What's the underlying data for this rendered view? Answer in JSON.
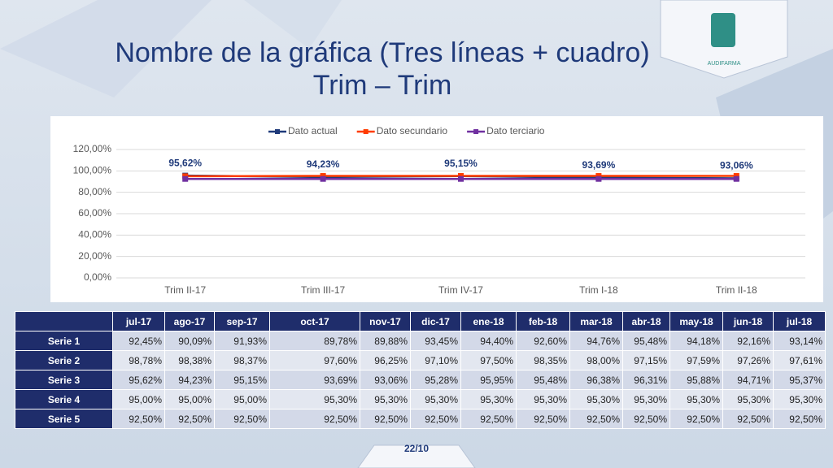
{
  "slide": {
    "title": "Nombre de la gráfica (Tres líneas + cuadro)",
    "subtitle": "Trim – Trim",
    "logo_text": "AUDIFARMA",
    "page_number": "22/10"
  },
  "chart_data": {
    "type": "line",
    "categories": [
      "Trim II-17",
      "Trim III-17",
      "Trim IV-17",
      "Trim I-18",
      "Trim II-18"
    ],
    "series": [
      {
        "name": "Dato actual",
        "color": "#1f3a7a",
        "values": [
          95.62,
          94.23,
          95.15,
          93.69,
          93.06
        ],
        "value_labels": [
          "95,62%",
          "94,23%",
          "95,15%",
          "93,69%",
          "93,06%"
        ]
      },
      {
        "name": "Dato secundario",
        "color": "#ff3c00",
        "values": [
          95.0,
          95.3,
          95.3,
          95.3,
          95.3
        ]
      },
      {
        "name": "Dato terciario",
        "color": "#7030a0",
        "values": [
          92.5,
          92.5,
          92.5,
          92.5,
          92.5
        ]
      }
    ],
    "ylim": [
      0,
      120
    ],
    "yticks": [
      {
        "value": 0,
        "label": "0,00%"
      },
      {
        "value": 20,
        "label": "20,00%"
      },
      {
        "value": 40,
        "label": "40,00%"
      },
      {
        "value": 60,
        "label": "60,00%"
      },
      {
        "value": 80,
        "label": "80,00%"
      },
      {
        "value": 100,
        "label": "100,00%"
      },
      {
        "value": 120,
        "label": "120,00%"
      }
    ],
    "grid": true,
    "legend": "top"
  },
  "table": {
    "columns": [
      "jul-17",
      "ago-17",
      "sep-17",
      "oct-17",
      "nov-17",
      "dic-17",
      "ene-18",
      "feb-18",
      "mar-18",
      "abr-18",
      "may-18",
      "jun-18",
      "jul-18"
    ],
    "rows": [
      {
        "label": "Serie 1",
        "cells": [
          "92,45%",
          "90,09%",
          "91,93%",
          "89,78%",
          "89,88%",
          "93,45%",
          "94,40%",
          "92,60%",
          "94,76%",
          "95,48%",
          "94,18%",
          "92,16%",
          "93,14%"
        ]
      },
      {
        "label": "Serie 2",
        "cells": [
          "98,78%",
          "98,38%",
          "98,37%",
          "97,60%",
          "96,25%",
          "97,10%",
          "97,50%",
          "98,35%",
          "98,00%",
          "97,15%",
          "97,59%",
          "97,26%",
          "97,61%"
        ]
      },
      {
        "label": "Serie 3",
        "cells": [
          "95,62%",
          "94,23%",
          "95,15%",
          "93,69%",
          "93,06%",
          "95,28%",
          "95,95%",
          "95,48%",
          "96,38%",
          "96,31%",
          "95,88%",
          "94,71%",
          "95,37%"
        ]
      },
      {
        "label": "Serie 4",
        "cells": [
          "95,00%",
          "95,00%",
          "95,00%",
          "95,30%",
          "95,30%",
          "95,30%",
          "95,30%",
          "95,30%",
          "95,30%",
          "95,30%",
          "95,30%",
          "95,30%",
          "95,30%"
        ]
      },
      {
        "label": "Serie 5",
        "cells": [
          "92,50%",
          "92,50%",
          "92,50%",
          "92,50%",
          "92,50%",
          "92,50%",
          "92,50%",
          "92,50%",
          "92,50%",
          "92,50%",
          "92,50%",
          "92,50%",
          "92,50%"
        ]
      }
    ]
  }
}
